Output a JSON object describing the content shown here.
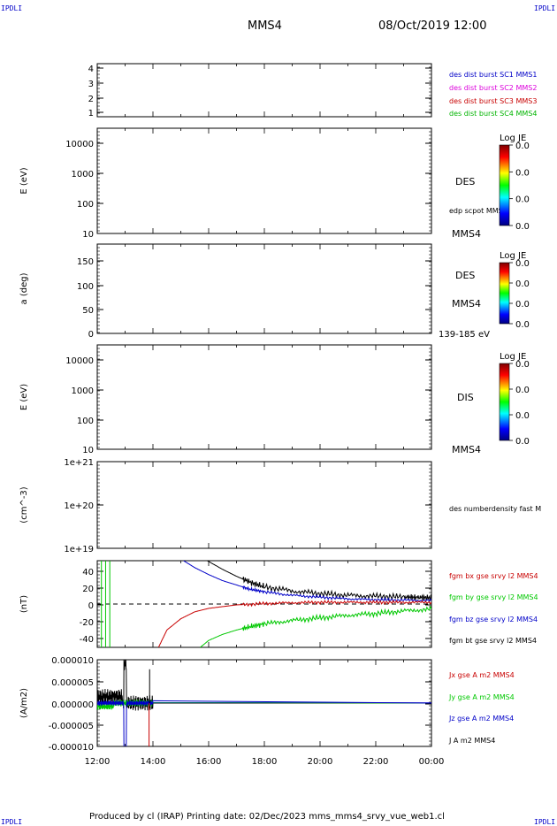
{
  "corner_label": "IPDLI",
  "header": {
    "title": "MMS4",
    "datetime": "08/Oct/2019 12:00"
  },
  "footer": "Produced by cl (IRAP)   Printing date: 02/Dec/2023   mms_mms4_srvy_vue_web1.cl",
  "chart_data": {
    "type": "line",
    "x_ticks": [
      "12:00",
      "14:00",
      "16:00",
      "18:00",
      "20:00",
      "22:00",
      "00:00"
    ],
    "panels": [
      {
        "id": "sc-position",
        "ylabel": "",
        "y_ticks": [
          "4",
          "3",
          "2",
          "1"
        ],
        "ylim": [
          0.7,
          4.3
        ],
        "legend": [
          {
            "name": "des dist burst SC1 MMS1",
            "color": "#0000c8"
          },
          {
            "name": "des dist burst SC2 MMS2",
            "color": "#dc00dc"
          },
          {
            "name": "des dist burst SC3 MMS3",
            "color": "#c80000"
          },
          {
            "name": "des dist burst SC4 MMS4",
            "color": "#00b400"
          }
        ]
      },
      {
        "id": "des-energy",
        "ylabel": "E (eV)",
        "y_ticks": [
          "10000",
          "1000",
          "100",
          "10"
        ],
        "scale": "log",
        "ylim": [
          10,
          20000
        ],
        "labels": [
          "DES",
          "edp scpot MMS4",
          "MMS4"
        ],
        "colorbar": {
          "title": "Log JE",
          "values": [
            "0.0",
            "0.0",
            "0.0",
            "0.0"
          ]
        }
      },
      {
        "id": "des-pitch",
        "ylabel": "a (deg)",
        "y_ticks": [
          "150",
          "100",
          "50",
          "0"
        ],
        "ylim": [
          0,
          180
        ],
        "labels": [
          "DES",
          "MMS4",
          "139-185 eV"
        ],
        "colorbar": {
          "title": "Log JE",
          "values": [
            "0.0",
            "0.0",
            "0.0",
            "0.0"
          ]
        }
      },
      {
        "id": "dis-energy",
        "ylabel": "E (eV)",
        "y_ticks": [
          "10000",
          "1000",
          "100",
          "10"
        ],
        "scale": "log",
        "ylim": [
          10,
          20000
        ],
        "labels": [
          "DIS",
          "MMS4"
        ],
        "colorbar": {
          "title": "Log JE",
          "values": [
            "0.0",
            "0.0",
            "0.0",
            "0.0"
          ]
        }
      },
      {
        "id": "density",
        "ylabel": "(cm^-3)",
        "y_ticks": [
          "1e+21",
          "1e+20",
          "1e+19"
        ],
        "scale": "log",
        "ylim": [
          1e+19,
          1e+21
        ],
        "legend": [
          {
            "name": "des numberdensity fast M",
            "color": "#000000"
          }
        ]
      },
      {
        "id": "fgm",
        "ylabel": "(nT)",
        "y_ticks": [
          "40",
          "20",
          "0",
          "-20",
          "-40"
        ],
        "ylim": [
          -50,
          50
        ],
        "legend": [
          {
            "name": "fgm bx gse srvy l2 MMS4",
            "color": "#c80000"
          },
          {
            "name": "fgm by gse srvy l2 MMS4",
            "color": "#00c800"
          },
          {
            "name": "fgm bz gse srvy l2 MMS4",
            "color": "#0000c8"
          },
          {
            "name": "fgm bt gse srvy l2 MMS4",
            "color": "#000000"
          }
        ],
        "series": [
          {
            "name": "fgm bt gse srvy l2 MMS4",
            "color": "#000000",
            "x": [
              15.95,
              16.5,
              17,
              17.5,
              18,
              19,
              20,
              21,
              22,
              23,
              23.6,
              24
            ],
            "y": [
              50,
              40,
              32,
              25,
              20,
              15,
              12,
              10,
              9,
              8,
              7.5,
              7
            ]
          },
          {
            "name": "fgm bz gse srvy l2 MMS4",
            "color": "#0000c8",
            "x": [
              15.1,
              15.5,
              16,
              16.5,
              17,
              17.5,
              18,
              19,
              20,
              21,
              22,
              23,
              24
            ],
            "y": [
              50,
              42,
              34,
              27,
              22,
              17,
              14,
              10,
              8,
              6,
              5,
              4.5,
              4
            ]
          },
          {
            "name": "fgm bx gse srvy l2 MMS4",
            "color": "#c80000",
            "x": [
              14.2,
              14.5,
              15,
              15.5,
              16,
              16.5,
              17,
              18,
              19,
              20,
              21,
              22,
              23,
              24
            ],
            "y": [
              -50,
              -30,
              -17,
              -9,
              -5,
              -3,
              -1,
              0.5,
              1.5,
              2,
              2,
              2,
              2,
              2
            ]
          },
          {
            "name": "fgm by gse srvy l2 MMS4",
            "color": "#00c800",
            "x": [
              15.7,
              16,
              16.5,
              17,
              17.5,
              18,
              19,
              20,
              21,
              22,
              23,
              24
            ],
            "y": [
              -50,
              -42,
              -35,
              -30,
              -26,
              -23,
              -19,
              -16,
              -13,
              -11,
              -8,
              -6
            ]
          }
        ]
      },
      {
        "id": "current",
        "ylabel": "(A/m2)",
        "y_ticks": [
          "0.000010",
          "0.000005",
          "0.000000",
          "-0.000005",
          "-0.000010"
        ],
        "ylim": [
          -1e-05,
          1e-05
        ],
        "legend": [
          {
            "name": "Jx gse A m2 MMS4",
            "color": "#c80000"
          },
          {
            "name": "Jy gse A m2 MMS4",
            "color": "#00c800"
          },
          {
            "name": "Jz gse A m2 MMS4",
            "color": "#0000c8"
          },
          {
            "name": "J A m2 MMS4",
            "color": "#000000"
          }
        ]
      }
    ]
  }
}
